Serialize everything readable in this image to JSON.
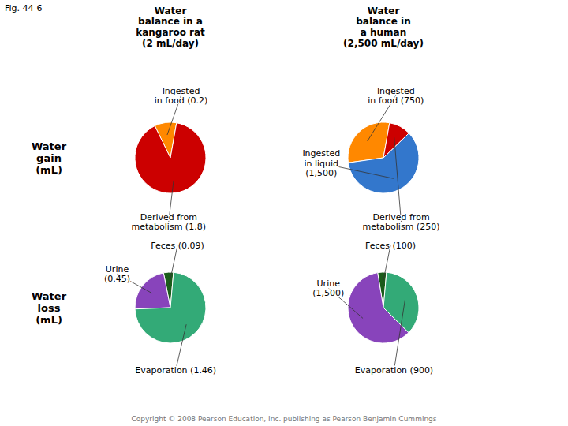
{
  "chart_data": [
    {
      "type": "pie",
      "title": "Water\nbalance in a\nkangaroo rat\n(2 mL/day)",
      "ylabel": "Water\ngain\n(mL)",
      "categories": [
        "Ingested\nin food (0.2)",
        "Derived from\nmetabolism (1.8)"
      ],
      "values": [
        0.2,
        1.8
      ],
      "colors": [
        "#ff8800",
        "#cc0000"
      ]
    },
    {
      "type": "pie",
      "title": "Water\nbalance in\na human\n(2,500 mL/day)",
      "categories": [
        "Ingested\nin food (750)",
        "Ingested\nin liquid\n(1,500)",
        "Derived from\nmetabolism (250)"
      ],
      "values": [
        750,
        1500,
        250
      ],
      "colors": [
        "#ff8800",
        "#3377cc",
        "#cc0000"
      ]
    },
    {
      "type": "pie",
      "ylabel": "Water\nloss\n(mL)",
      "categories": [
        "Feces (0.09)",
        "Urine\n(0.45)",
        "Evaporation (1.46)"
      ],
      "values": [
        0.09,
        0.45,
        1.46
      ],
      "colors": [
        "#1a5c1a",
        "#8844bb",
        "#33aa77"
      ]
    },
    {
      "type": "pie",
      "categories": [
        "Feces (100)",
        "Urine\n(1,500)",
        "Evaporation (900)"
      ],
      "values": [
        100,
        1500,
        900
      ],
      "colors": [
        "#1a5c1a",
        "#8844bb",
        "#33aa77"
      ]
    }
  ],
  "annotations": [
    "Fig. 44-6",
    "Copyright © 2008 Pearson Education, Inc. publishing as Pearson Benjamin Cummings"
  ]
}
